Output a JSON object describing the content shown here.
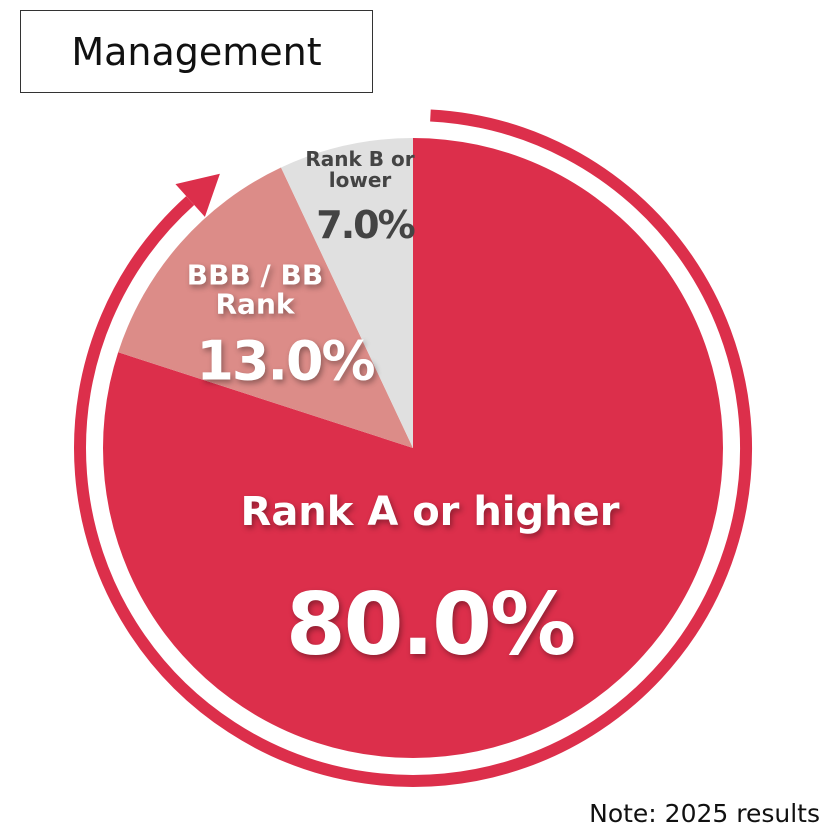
{
  "chart_data": {
    "type": "pie",
    "title": "Management",
    "note": "Note: 2025 results",
    "categories": [
      "Rank A or higher",
      "BBB / BB Rank",
      "Rank B or lower"
    ],
    "values": [
      80.0,
      13.0,
      7.0
    ],
    "value_labels": [
      "80.0%",
      "13.0%",
      "7.0%"
    ],
    "colors": [
      "#dc2f4b",
      "#dc8c88",
      "#e0e0e0"
    ]
  }
}
